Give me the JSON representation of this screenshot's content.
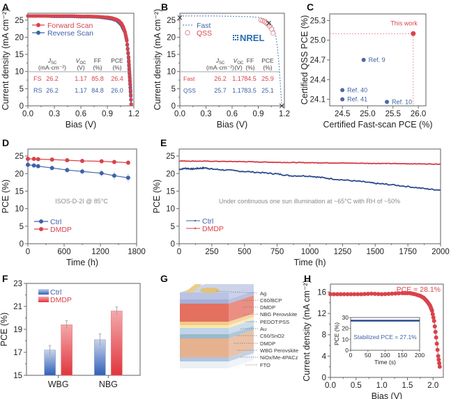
{
  "colors": {
    "red": "#d9434a",
    "blue": "#3d62a8",
    "gray_text": "#8a8a8a",
    "frame": "#6b6b6b"
  },
  "chart_data": [
    {
      "panel": "A",
      "type": "line",
      "xlabel": "Bias (V)",
      "ylabel": "Current density (mA cm⁻²)",
      "xlim": [
        0,
        1.2
      ],
      "ylim": [
        0,
        27
      ],
      "xticks": [
        "0.0",
        "0.3",
        "0.6",
        "0.9",
        "1.2"
      ],
      "yticks": [
        "0",
        "5",
        "10",
        "15",
        "20",
        "25"
      ],
      "legend": [
        "Forward Scan",
        "Reverse Scan"
      ],
      "legend_position": "top-left",
      "series": [
        {
          "name": "Forward Scan",
          "x": [
            0,
            0.1,
            0.2,
            0.3,
            0.4,
            0.5,
            0.6,
            0.7,
            0.8,
            0.9,
            0.95,
            1.0,
            1.03,
            1.06,
            1.08,
            1.1,
            1.12,
            1.14,
            1.15,
            1.16,
            1.17
          ],
          "y": [
            26.2,
            26.2,
            26.2,
            26.2,
            26.2,
            26.2,
            26.1,
            26.1,
            26.0,
            25.8,
            25.6,
            25.2,
            24.8,
            24.0,
            23.0,
            21.5,
            19.2,
            14.3,
            10.0,
            6.0,
            0.5
          ]
        },
        {
          "name": "Reverse Scan",
          "x": [
            0,
            0.1,
            0.2,
            0.3,
            0.4,
            0.5,
            0.6,
            0.7,
            0.8,
            0.9,
            0.95,
            1.0,
            1.03,
            1.06,
            1.08,
            1.1,
            1.12,
            1.14,
            1.15,
            1.16,
            1.17
          ],
          "y": [
            26.2,
            26.2,
            26.2,
            26.1,
            26.1,
            26.1,
            26.0,
            26.0,
            25.9,
            25.6,
            25.4,
            25.0,
            24.4,
            23.6,
            22.5,
            21.5,
            19.0,
            14.0,
            9.5,
            5.3,
            0.5
          ]
        }
      ],
      "table": {
        "headers": [
          "",
          "J_SC (mA·cm⁻²)",
          "V_OC (V)",
          "FF (%)",
          "PCE (%)"
        ],
        "rows": [
          [
            "FS",
            "26.2",
            "1.17",
            "85.8",
            "26.4"
          ],
          [
            "RS",
            "26.2",
            "1.17",
            "84.8",
            "26.0"
          ]
        ]
      }
    },
    {
      "panel": "B",
      "type": "line",
      "xlabel": "Bias (V)",
      "ylabel": "Current density (mA cm⁻²)",
      "xlim": [
        0,
        1.2
      ],
      "ylim": [
        0,
        27
      ],
      "xticks": [
        "0.0",
        "0.3",
        "0.6",
        "0.9",
        "1.2"
      ],
      "yticks": [
        "0",
        "5",
        "10",
        "15",
        "20",
        "25"
      ],
      "legend": [
        "Fast",
        "QSS"
      ],
      "legend_position": "top-left",
      "annotation": "NREL",
      "series": [
        {
          "name": "Fast",
          "x": [
            0,
            0.2,
            0.4,
            0.6,
            0.8,
            0.9,
            0.95,
            1.0,
            1.05,
            1.08,
            1.1,
            1.12,
            1.14,
            1.15,
            1.16,
            1.17
          ],
          "y": [
            26.2,
            26.2,
            26.2,
            26.1,
            26.0,
            25.8,
            25.5,
            25.0,
            23.8,
            22.5,
            20.5,
            17.0,
            11.5,
            7.5,
            3.5,
            0
          ]
        },
        {
          "name": "QSS",
          "x": [
            0.93,
            0.95,
            0.97,
            0.99,
            1.01,
            1.03,
            1.05,
            1.07
          ],
          "y": [
            25.0,
            24.8,
            24.6,
            24.2,
            23.8,
            23.2,
            22.4,
            21.2
          ]
        }
      ],
      "markers_x": [
        [
          0,
          25.7
        ],
        [
          1.02,
          24.1
        ],
        [
          1.17,
          0
        ]
      ],
      "table": {
        "headers": [
          "",
          "J_SC (mA·cm⁻²)",
          "V_OC (V)",
          "FF (%)",
          "PCE (%)"
        ],
        "rows": [
          [
            "Fast",
            "26.2",
            "1.17",
            "84.5",
            "25.9"
          ],
          [
            "QSS",
            "25.7",
            "1.17",
            "83.5",
            "25.1"
          ]
        ]
      }
    },
    {
      "panel": "C",
      "type": "scatter",
      "xlabel": "Certified Fast-scan PCE (%)",
      "ylabel": "Certified QSS PCE (%)",
      "xlim": [
        24.25,
        26.15
      ],
      "ylim": [
        24.0,
        25.4
      ],
      "xticks": [
        "24.5",
        "25.0",
        "25.5",
        "26.0"
      ],
      "yticks": [
        "24.1",
        "24.4",
        "24.7",
        "25.0",
        "25.3"
      ],
      "points": [
        {
          "label": "This work",
          "x": 25.9,
          "y": 25.1,
          "highlight": true
        },
        {
          "label": "Ref. 9",
          "x": 24.92,
          "y": 24.7,
          "highlight": false
        },
        {
          "label": "Ref. 40",
          "x": 24.5,
          "y": 24.24,
          "highlight": false
        },
        {
          "label": "Ref. 41",
          "x": 24.5,
          "y": 24.1,
          "highlight": false
        },
        {
          "label": "Ref. 10",
          "x": 25.38,
          "y": 24.06,
          "highlight": false
        }
      ]
    },
    {
      "panel": "D",
      "type": "line",
      "xlabel": "Time (h)",
      "ylabel": "PCE (%)",
      "xlim": [
        0,
        1800
      ],
      "ylim": [
        0,
        27
      ],
      "xticks": [
        "0",
        "600",
        "1200",
        "1800"
      ],
      "yticks": [
        "0",
        "5",
        "10",
        "15",
        "20",
        "25"
      ],
      "annotation": "ISOS-D-2I @ 85°C",
      "legend": [
        "Ctrl",
        "DMDP"
      ],
      "legend_position": "bottom-left",
      "series": [
        {
          "name": "Ctrl",
          "x": [
            0,
            100,
            170,
            400,
            650,
            900,
            1220,
            1430,
            1660
          ],
          "y": [
            22.5,
            22.3,
            22.1,
            21.6,
            21.0,
            20.6,
            20.1,
            19.4,
            18.8
          ]
        },
        {
          "name": "DMDP",
          "x": [
            0,
            100,
            170,
            400,
            650,
            900,
            1220,
            1430,
            1660
          ],
          "y": [
            24.2,
            24.2,
            24.1,
            24.0,
            23.8,
            23.6,
            23.5,
            23.3,
            23.1
          ]
        }
      ]
    },
    {
      "panel": "E",
      "type": "line",
      "xlabel": "Time (h)",
      "ylabel": "PCE (%)",
      "xlim": [
        0,
        2000
      ],
      "ylim": [
        0,
        27
      ],
      "xticks": [
        "0",
        "250",
        "500",
        "750",
        "1000",
        "1250",
        "1500",
        "1750",
        "2000"
      ],
      "yticks": [
        "0",
        "5",
        "10",
        "15",
        "20",
        "25"
      ],
      "annotation": "Under continuous one sun illumination at ~65°C with RH of ~50%",
      "legend": [
        "Ctrl",
        "DMDP"
      ],
      "legend_position": "bottom-left",
      "series": [
        {
          "name": "Ctrl",
          "x": [
            0,
            50,
            100,
            150,
            200,
            250,
            350,
            500,
            650,
            750,
            850,
            1000,
            1100,
            1250,
            1400,
            1500,
            1600,
            1750,
            1900,
            2000
          ],
          "y": [
            21.2,
            21.5,
            21.3,
            21.5,
            21.6,
            21.3,
            21.0,
            20.6,
            20.2,
            19.9,
            19.4,
            19.3,
            18.8,
            18.2,
            17.7,
            17.2,
            16.9,
            16.3,
            15.6,
            15.3
          ]
        },
        {
          "name": "DMDP",
          "x": [
            0,
            250,
            500,
            750,
            1000,
            1250,
            1500,
            1750,
            2000
          ],
          "y": [
            23.6,
            23.5,
            23.4,
            23.2,
            23.1,
            23.0,
            22.9,
            22.8,
            22.7
          ]
        }
      ]
    },
    {
      "panel": "F",
      "type": "bar",
      "ylabel": "PCE (%)",
      "ylim": [
        15,
        23
      ],
      "yticks": [
        "15",
        "17",
        "19",
        "21",
        "23"
      ],
      "categories": [
        "WBG",
        "NBG"
      ],
      "legend": [
        "Ctrl",
        "DMDP"
      ],
      "legend_position": "top-left",
      "series": [
        {
          "name": "Ctrl",
          "values": [
            17.2,
            18.1
          ],
          "errors": [
            0.4,
            0.5
          ]
        },
        {
          "name": "DMDP",
          "values": [
            19.4,
            20.6
          ],
          "errors": [
            0.35,
            0.35
          ]
        }
      ]
    },
    {
      "panel": "H",
      "type": "line",
      "xlabel": "Bias (V)",
      "ylabel": "Current density (mA cm⁻²)",
      "xlim": [
        0,
        2.2
      ],
      "ylim": [
        0,
        17.5
      ],
      "xticks": [
        "0.0",
        "0.5",
        "1.0",
        "1.5",
        "2.0"
      ],
      "yticks": [
        "0",
        "4",
        "8",
        "12",
        "16"
      ],
      "annotation": "PCE = 28.1%",
      "series": [
        {
          "name": "JV",
          "x": [
            0,
            0.2,
            0.4,
            0.6,
            0.8,
            1.0,
            1.2,
            1.4,
            1.55,
            1.65,
            1.75,
            1.82,
            1.88,
            1.94,
            1.98,
            2.02,
            2.06,
            2.1,
            2.13
          ],
          "y": [
            15.6,
            15.6,
            15.6,
            15.6,
            15.7,
            15.6,
            15.7,
            15.8,
            15.8,
            15.6,
            15.3,
            14.9,
            14.3,
            13.5,
            12.5,
            10.6,
            7.5,
            4.0,
            2.0
          ]
        }
      ],
      "inset": {
        "xlabel": "Time (s)",
        "ylabel": "PCE (%)",
        "xlim": [
          0,
          200
        ],
        "ylim": [
          0,
          30
        ],
        "xticks": [
          "0",
          "50",
          "100",
          "150",
          "200"
        ],
        "yticks": [
          "0",
          "10",
          "20",
          "30"
        ],
        "annotation": "Stabilized PCE = 27.1%",
        "value": 27.1
      }
    }
  ],
  "panels": {
    "A": "A",
    "B": "B",
    "C": "C",
    "D": "D",
    "E": "E",
    "F": "F",
    "G": "G",
    "H": "H"
  },
  "diagram_G": {
    "layers": [
      "Ag",
      "C60/BCP",
      "DMDP",
      "NBG Perovskite",
      "PEDOT:PSS",
      "Au",
      "C60/SnO2",
      "DMDP",
      "WBG Perovskite",
      "NiOx/Me-4PACz",
      "FTO"
    ]
  }
}
